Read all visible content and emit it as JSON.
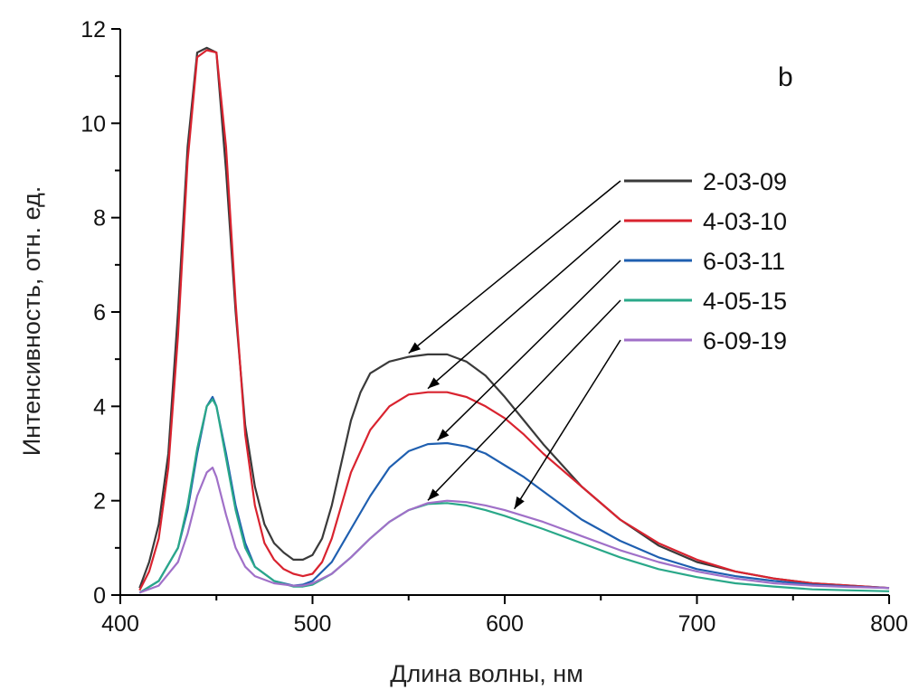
{
  "chart_data": {
    "type": "line",
    "panel_label": "b",
    "xlabel": "Длина волны, нм",
    "ylabel": "Интенсивность, отн. ед.",
    "xlim": [
      400,
      800
    ],
    "ylim": [
      0,
      12
    ],
    "xticks": [
      400,
      500,
      600,
      700,
      800
    ],
    "yticks": [
      0,
      2,
      4,
      6,
      8,
      10,
      12
    ],
    "grid": false,
    "legend_position": "right",
    "series": [
      {
        "name": "2-03-09",
        "color": "#3a3a3a",
        "x": [
          410,
          415,
          420,
          425,
          430,
          435,
          440,
          445,
          450,
          455,
          460,
          465,
          470,
          475,
          480,
          485,
          490,
          495,
          500,
          505,
          510,
          515,
          520,
          525,
          530,
          540,
          550,
          560,
          570,
          580,
          590,
          600,
          610,
          620,
          640,
          660,
          680,
          700,
          720,
          740,
          760,
          780,
          800
        ],
        "y": [
          0.15,
          0.7,
          1.5,
          3.0,
          6.0,
          9.5,
          11.5,
          11.6,
          11.5,
          9.0,
          6.0,
          3.6,
          2.3,
          1.5,
          1.1,
          0.9,
          0.75,
          0.75,
          0.85,
          1.2,
          1.9,
          2.8,
          3.7,
          4.3,
          4.7,
          4.95,
          5.05,
          5.1,
          5.1,
          4.95,
          4.65,
          4.2,
          3.7,
          3.2,
          2.3,
          1.6,
          1.05,
          0.7,
          0.5,
          0.35,
          0.25,
          0.2,
          0.15
        ]
      },
      {
        "name": "4-03-10",
        "color": "#d9232f",
        "x": [
          410,
          415,
          420,
          425,
          430,
          435,
          440,
          445,
          450,
          455,
          460,
          465,
          470,
          475,
          480,
          485,
          490,
          495,
          500,
          505,
          510,
          515,
          520,
          530,
          540,
          550,
          560,
          570,
          580,
          590,
          600,
          610,
          620,
          640,
          660,
          680,
          700,
          720,
          740,
          760,
          780,
          800
        ],
        "y": [
          0.1,
          0.5,
          1.2,
          2.7,
          5.5,
          9.2,
          11.4,
          11.55,
          11.5,
          9.5,
          6.2,
          3.4,
          1.9,
          1.1,
          0.75,
          0.55,
          0.45,
          0.4,
          0.45,
          0.7,
          1.2,
          1.9,
          2.6,
          3.5,
          4.0,
          4.25,
          4.3,
          4.3,
          4.2,
          4.0,
          3.75,
          3.4,
          3.0,
          2.3,
          1.6,
          1.1,
          0.75,
          0.5,
          0.35,
          0.25,
          0.2,
          0.15
        ]
      },
      {
        "name": "6-03-11",
        "color": "#1f5fb0",
        "x": [
          410,
          420,
          430,
          435,
          440,
          445,
          448,
          450,
          455,
          460,
          465,
          470,
          480,
          490,
          495,
          500,
          510,
          520,
          530,
          540,
          550,
          560,
          570,
          580,
          590,
          600,
          610,
          620,
          640,
          660,
          680,
          700,
          720,
          740,
          760,
          780,
          800
        ],
        "y": [
          0.05,
          0.3,
          1.0,
          1.8,
          3.0,
          4.0,
          4.2,
          4.0,
          3.0,
          1.9,
          1.1,
          0.6,
          0.3,
          0.2,
          0.22,
          0.3,
          0.7,
          1.4,
          2.1,
          2.7,
          3.05,
          3.2,
          3.22,
          3.15,
          3.0,
          2.75,
          2.5,
          2.2,
          1.6,
          1.15,
          0.8,
          0.55,
          0.4,
          0.3,
          0.22,
          0.18,
          0.15
        ]
      },
      {
        "name": "4-05-15",
        "color": "#2aa889",
        "x": [
          410,
          420,
          430,
          435,
          440,
          445,
          448,
          450,
          455,
          460,
          465,
          470,
          480,
          490,
          495,
          500,
          510,
          520,
          530,
          540,
          550,
          560,
          570,
          580,
          590,
          600,
          620,
          640,
          660,
          680,
          700,
          720,
          740,
          760,
          780,
          800
        ],
        "y": [
          0.05,
          0.3,
          1.0,
          1.9,
          3.1,
          4.0,
          4.15,
          4.0,
          2.9,
          1.8,
          1.0,
          0.6,
          0.3,
          0.18,
          0.18,
          0.22,
          0.45,
          0.8,
          1.2,
          1.55,
          1.8,
          1.93,
          1.95,
          1.9,
          1.8,
          1.68,
          1.4,
          1.1,
          0.8,
          0.55,
          0.38,
          0.25,
          0.18,
          0.12,
          0.1,
          0.08
        ]
      },
      {
        "name": "6-09-19",
        "color": "#a070c8",
        "x": [
          410,
          420,
          430,
          435,
          440,
          445,
          448,
          450,
          455,
          460,
          465,
          470,
          480,
          490,
          495,
          500,
          510,
          520,
          530,
          540,
          550,
          560,
          570,
          580,
          590,
          600,
          620,
          640,
          660,
          680,
          700,
          720,
          740,
          760,
          780,
          800
        ],
        "y": [
          0.05,
          0.2,
          0.7,
          1.3,
          2.1,
          2.6,
          2.7,
          2.5,
          1.7,
          1.0,
          0.6,
          0.4,
          0.25,
          0.2,
          0.2,
          0.25,
          0.45,
          0.8,
          1.2,
          1.55,
          1.8,
          1.95,
          2.0,
          1.97,
          1.9,
          1.8,
          1.55,
          1.25,
          0.95,
          0.7,
          0.5,
          0.35,
          0.25,
          0.2,
          0.17,
          0.15
        ]
      }
    ],
    "annotations": [
      {
        "series": "2-03-09",
        "target": [
          550,
          5.05
        ]
      },
      {
        "series": "4-03-10",
        "target": [
          560,
          4.3
        ]
      },
      {
        "series": "6-03-11",
        "target": [
          565,
          3.2
        ]
      },
      {
        "series": "4-05-15",
        "target": [
          560,
          1.93
        ]
      },
      {
        "series": "6-09-19",
        "target": [
          605,
          1.75
        ]
      }
    ]
  }
}
